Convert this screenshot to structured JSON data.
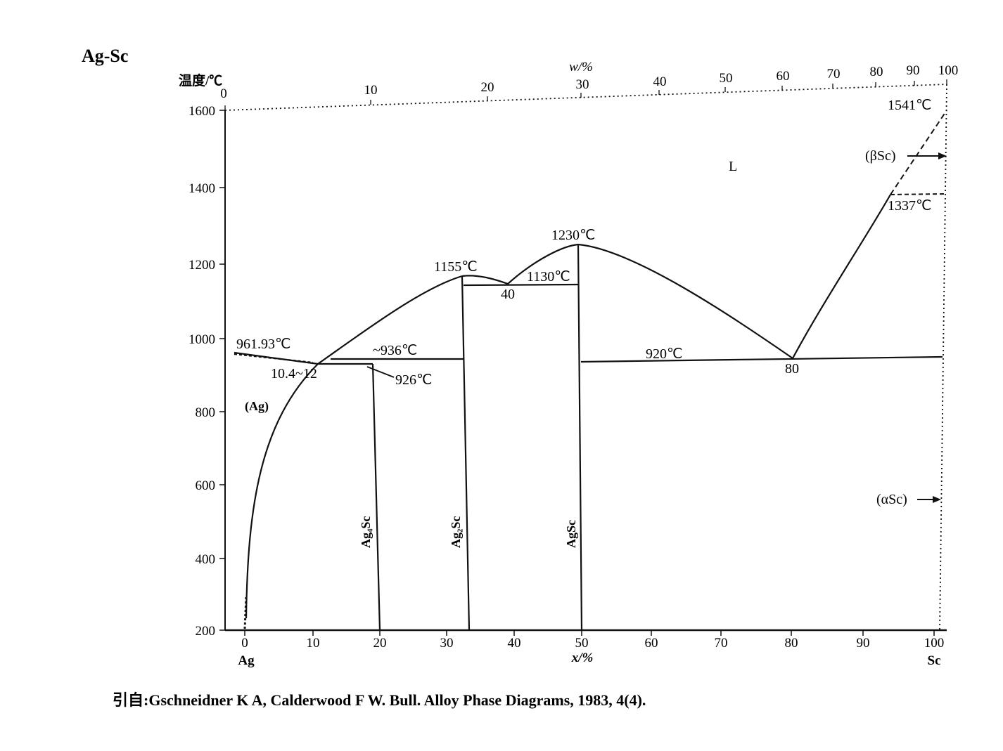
{
  "system": "Ag-Sc",
  "axes": {
    "y_label": "温度/℃",
    "y_ticks": [
      "1600",
      "1400",
      "1200",
      "1000",
      "800",
      "600",
      "400",
      "200"
    ],
    "x_label": "x/%",
    "x_ticks": [
      "0",
      "10",
      "20",
      "30",
      "40",
      "50",
      "60",
      "70",
      "80",
      "90",
      "100"
    ],
    "top_label": "w/%",
    "top_ticks": [
      "0",
      "10",
      "20",
      "30",
      "40",
      "50",
      "60",
      "70",
      "80",
      "90",
      "100"
    ],
    "left_element": "Ag",
    "right_element": "Sc"
  },
  "annotations": {
    "liquid": "L",
    "t_1541": "1541℃",
    "beta_sc": "(βSc)",
    "t_1337": "1337℃",
    "t_1230": "1230℃",
    "t_1155": "1155℃",
    "t_1130": "1130℃",
    "c_40": "40",
    "t_961": "961.93℃",
    "t_936": "~936℃",
    "t_926": "926℃",
    "c_104": "10.4~12",
    "t_920": "920℃",
    "c_80": "80",
    "alpha_sc": "(αSc)",
    "ag_phase": "(Ag)"
  },
  "compounds": {
    "ag4sc": "Ag₄Sc",
    "ag2sc": "Ag₂Sc",
    "agsc": "AgSc"
  },
  "citation": "引自:Gschneidner K A, Calderwood F W. Bull. Alloy Phase Diagrams, 1983, 4(4)."
}
